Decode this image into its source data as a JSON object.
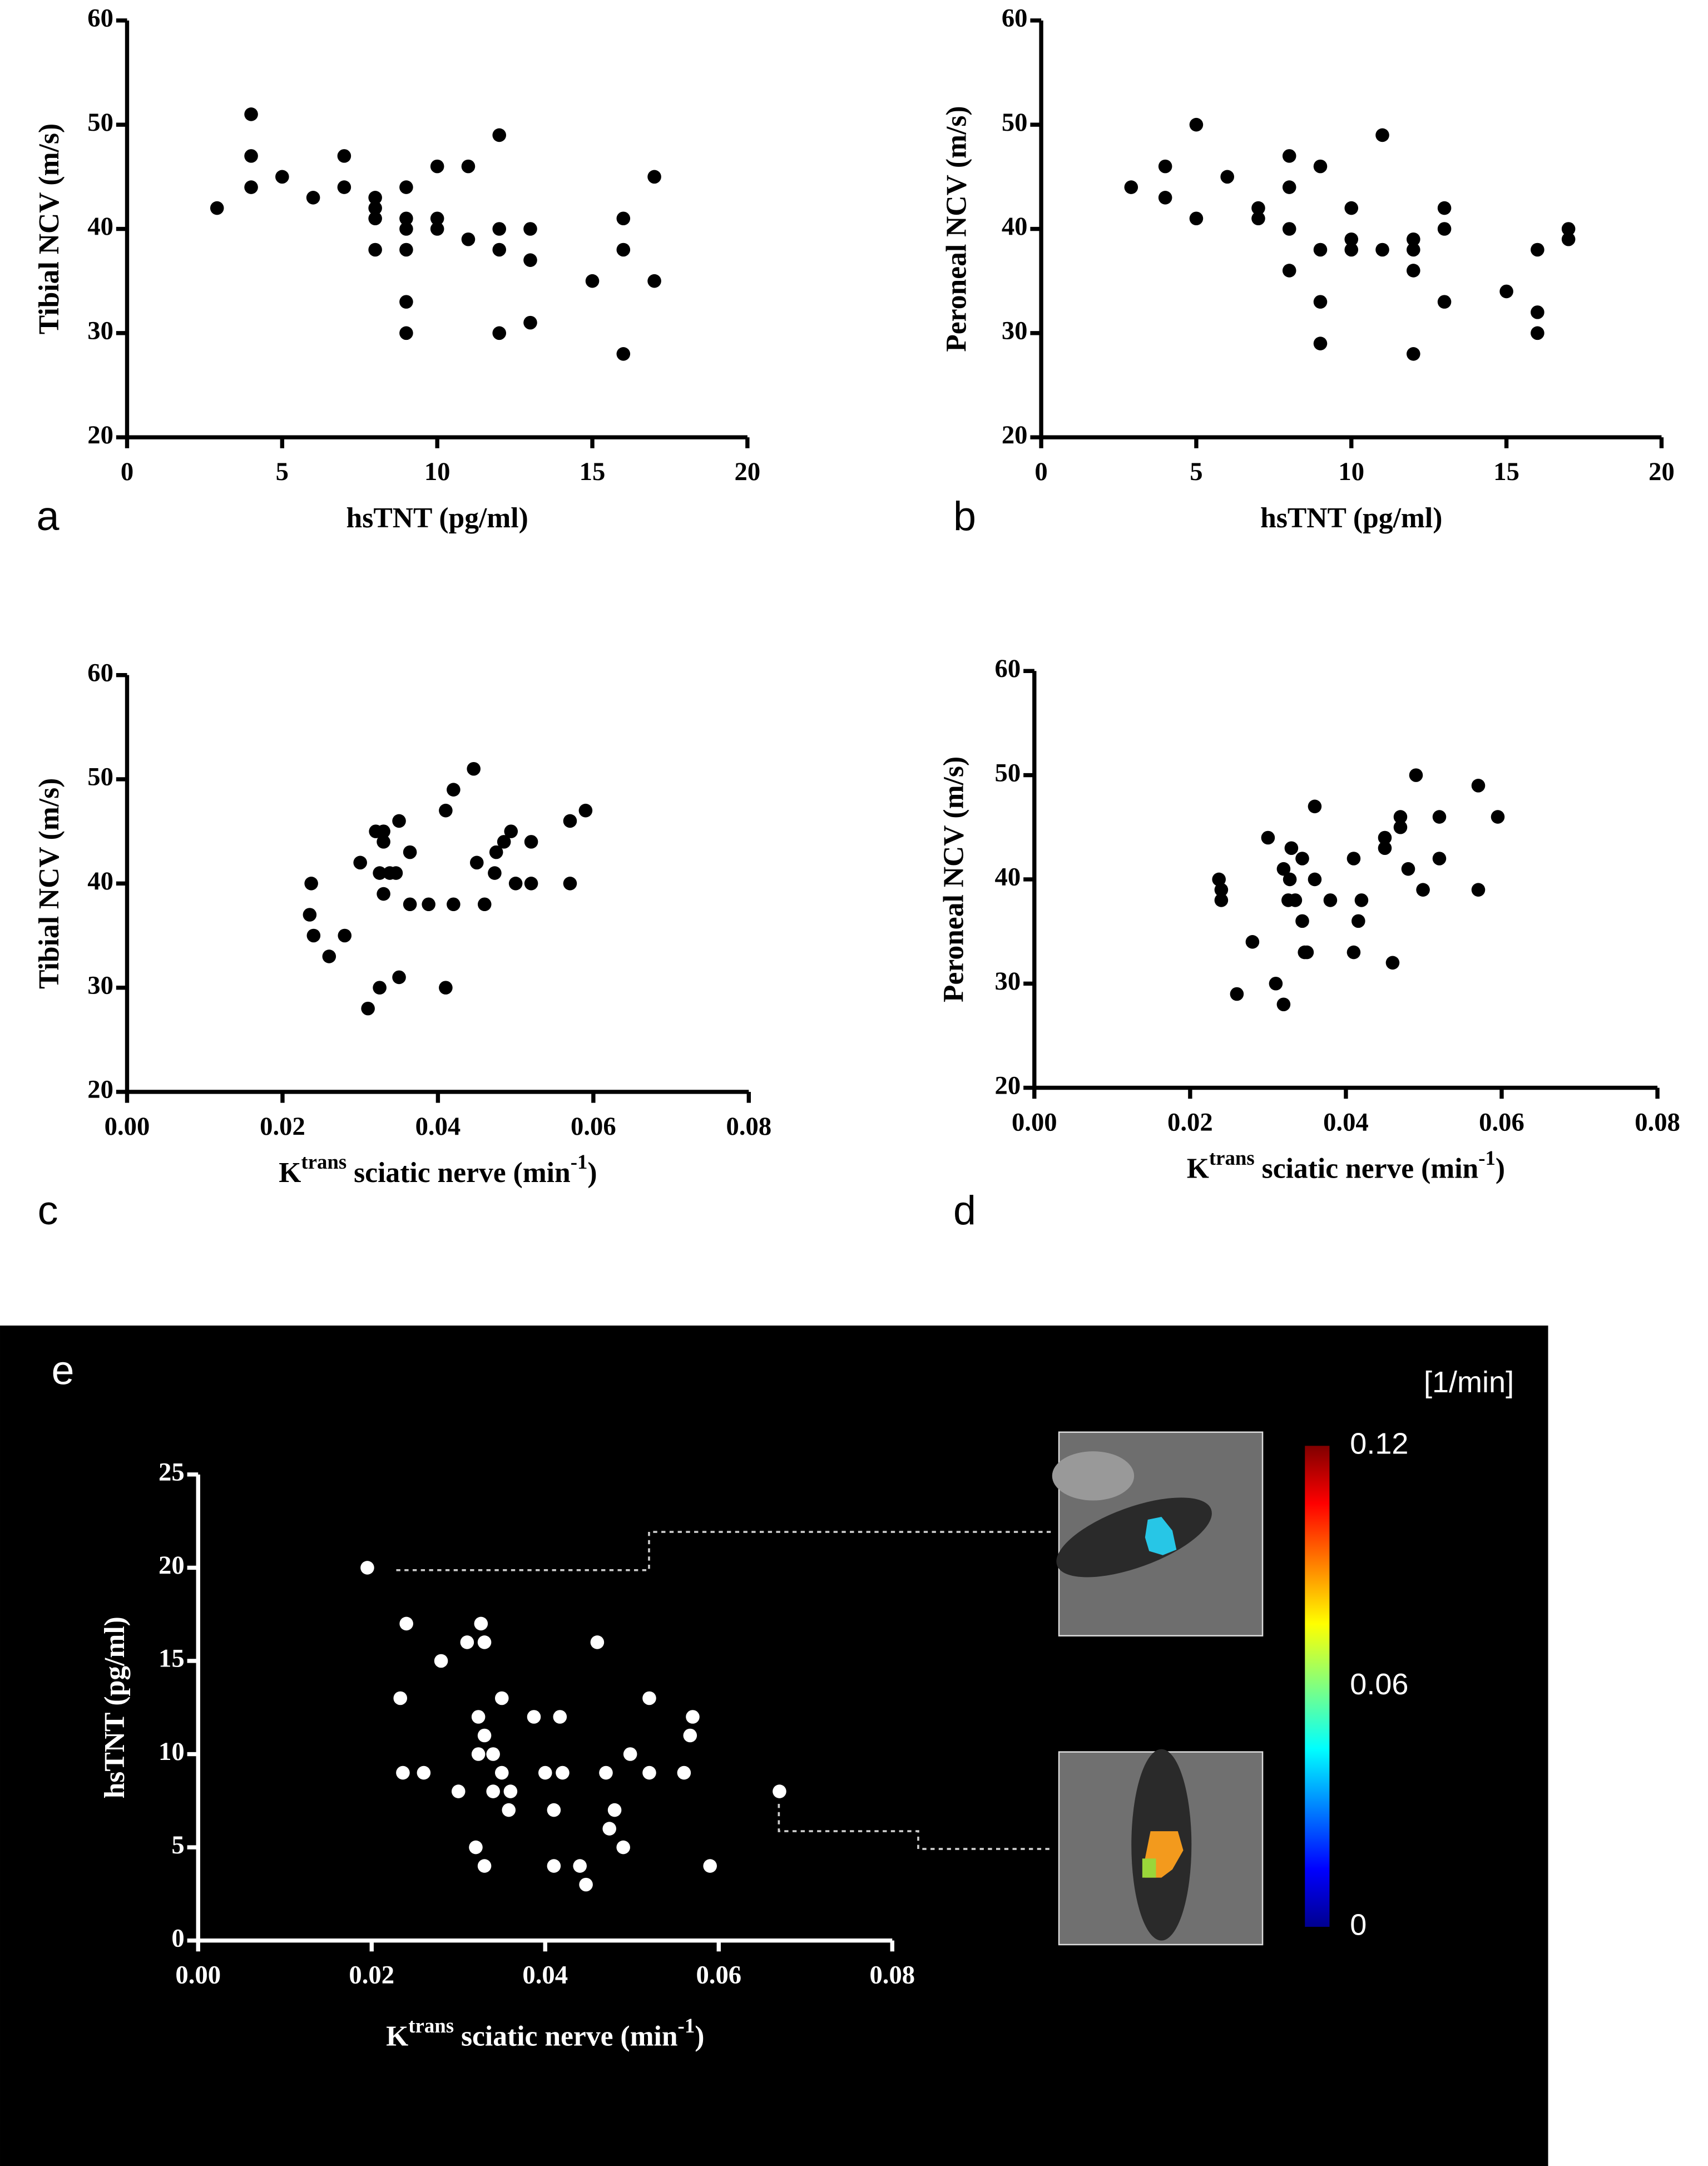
{
  "chart_data": [
    {
      "type": "scatter",
      "panel": "a",
      "x_label": "hsTNT (pg/ml)",
      "y_label": "Tibial NCV (m/s)",
      "color": "#000000",
      "axis_color": "#000000",
      "background": "#ffffff",
      "xlim": [
        0,
        20
      ],
      "xticks": [
        0,
        5,
        10,
        15,
        20
      ],
      "ylim": [
        20,
        60
      ],
      "yticks": [
        20,
        30,
        40,
        50,
        60
      ],
      "x": [
        2.9,
        4,
        4,
        4,
        5,
        6,
        7,
        7,
        8,
        8,
        8,
        8,
        9,
        9,
        9,
        9,
        9,
        9,
        10,
        10,
        10,
        11,
        11,
        12,
        12,
        12,
        12,
        13,
        13,
        13,
        15,
        16,
        16,
        16,
        17,
        17
      ],
      "values": [
        42,
        51,
        47,
        44,
        45,
        43,
        47,
        44,
        43,
        42,
        41,
        38,
        44,
        41,
        40,
        38,
        33,
        30,
        46,
        41,
        40,
        46,
        39,
        49,
        40,
        38,
        30,
        40,
        37,
        31,
        35,
        41,
        38,
        28,
        45,
        35
      ]
    },
    {
      "type": "scatter",
      "panel": "b",
      "x_label": "hsTNT (pg/ml)",
      "y_label": "Peroneal NCV (m/s)",
      "color": "#000000",
      "axis_color": "#000000",
      "background": "#ffffff",
      "xlim": [
        0,
        20
      ],
      "xticks": [
        0,
        5,
        10,
        15,
        20
      ],
      "ylim": [
        20,
        60
      ],
      "yticks": [
        20,
        30,
        40,
        50,
        60
      ],
      "x": [
        2.9,
        4,
        4,
        5,
        5,
        6,
        7,
        7,
        8,
        8,
        8,
        8,
        9,
        9,
        9,
        9,
        10,
        10,
        10,
        11,
        11,
        12,
        12,
        12,
        12,
        13,
        13,
        13,
        15,
        16,
        16,
        16,
        17,
        17
      ],
      "values": [
        44,
        46,
        43,
        50,
        41,
        45,
        42,
        41,
        47,
        44,
        40,
        36,
        46,
        38,
        33,
        29,
        42,
        39,
        38,
        49,
        38,
        39,
        38,
        36,
        28,
        42,
        40,
        33,
        34,
        38,
        32,
        30,
        40,
        39
      ]
    },
    {
      "type": "scatter",
      "panel": "c",
      "x_label": [
        "K",
        "trans",
        " sciatic nerve (min",
        "-1",
        ")"
      ],
      "y_label": "Tibial NCV (m/s)",
      "color": "#000000",
      "axis_color": "#000000",
      "background": "#ffffff",
      "xlim": [
        0,
        0.08
      ],
      "xticks": [
        {
          "value": 0,
          "label": "0.00"
        },
        0.02,
        0.04,
        0.06,
        0.08
      ],
      "ylim": [
        20,
        60
      ],
      "yticks": [
        20,
        30,
        40,
        50,
        60
      ],
      "x": [
        0.0237,
        0.0235,
        0.024,
        0.026,
        0.028,
        0.03,
        0.032,
        0.033,
        0.033,
        0.0325,
        0.0338,
        0.0346,
        0.033,
        0.035,
        0.0364,
        0.0364,
        0.0388,
        0.0325,
        0.035,
        0.031,
        0.041,
        0.042,
        0.042,
        0.0446,
        0.045,
        0.046,
        0.0473,
        0.0475,
        0.0485,
        0.0494,
        0.05,
        0.052,
        0.052,
        0.041,
        0.057,
        0.057,
        0.059
      ],
      "values": [
        40,
        37,
        35,
        33,
        35,
        42,
        45,
        45,
        44,
        41,
        41,
        41,
        39,
        46,
        43,
        38,
        38,
        30,
        31,
        28,
        47,
        49,
        38,
        51,
        42,
        38,
        41,
        43,
        44,
        45,
        40,
        40,
        44,
        30,
        46,
        40,
        47
      ]
    },
    {
      "type": "scatter",
      "panel": "d",
      "x_label": [
        "K",
        "trans",
        " sciatic nerve (min",
        "-1",
        ")"
      ],
      "y_label": "Peroneal NCV (m/s)",
      "color": "#000000",
      "axis_color": "#000000",
      "background": "#ffffff",
      "xlim": [
        0,
        0.08
      ],
      "xticks": [
        {
          "value": 0,
          "label": "0.00"
        },
        0.02,
        0.04,
        0.06,
        0.08
      ],
      "ylim": [
        20,
        60
      ],
      "yticks": [
        20,
        30,
        40,
        50,
        60
      ],
      "x": [
        0.0237,
        0.024,
        0.024,
        0.026,
        0.028,
        0.03,
        0.031,
        0.032,
        0.0328,
        0.0326,
        0.0335,
        0.032,
        0.033,
        0.0344,
        0.0344,
        0.0347,
        0.035,
        0.036,
        0.036,
        0.038,
        0.041,
        0.041,
        0.0416,
        0.042,
        0.045,
        0.045,
        0.046,
        0.047,
        0.047,
        0.048,
        0.049,
        0.0499,
        0.052,
        0.052,
        0.057,
        0.057,
        0.0595
      ],
      "values": [
        40,
        39,
        38,
        29,
        34,
        44,
        30,
        41,
        40,
        38,
        38,
        28,
        43,
        42,
        36,
        33,
        33,
        47,
        40,
        38,
        33,
        42,
        36,
        38,
        43,
        44,
        32,
        46,
        45,
        41,
        50,
        39,
        46,
        42,
        49,
        39,
        46
      ]
    },
    {
      "type": "scatter",
      "panel": "e",
      "x_label": [
        "K",
        "trans",
        " sciatic nerve (min",
        "-1",
        ")"
      ],
      "y_label": "hsTNT (pg/ml)",
      "color": "#ffffff",
      "axis_color": "#ffffff",
      "background": "#000000",
      "xlim": [
        0,
        0.08
      ],
      "xticks": [
        {
          "value": 0,
          "label": "0.00"
        },
        0.02,
        0.04,
        0.06,
        0.08
      ],
      "ylim": [
        0,
        25
      ],
      "yticks": [
        0,
        5,
        10,
        15,
        20,
        25
      ],
      "x": [
        0.0195,
        0.024,
        0.0233,
        0.0236,
        0.026,
        0.028,
        0.031,
        0.0326,
        0.033,
        0.0323,
        0.033,
        0.0323,
        0.034,
        0.035,
        0.03,
        0.034,
        0.035,
        0.036,
        0.0358,
        0.032,
        0.033,
        0.0387,
        0.04,
        0.0417,
        0.042,
        0.041,
        0.041,
        0.044,
        0.0447,
        0.046,
        0.047,
        0.048,
        0.0474,
        0.049,
        0.0498,
        0.052,
        0.052,
        0.056,
        0.0567,
        0.057,
        0.059,
        0.067
      ],
      "values": [
        20,
        17,
        13,
        9,
        9,
        15,
        16,
        17,
        16,
        12,
        11,
        10,
        10,
        13,
        8,
        8,
        9,
        8,
        7,
        5,
        4,
        12,
        9,
        12,
        9,
        7,
        4,
        4,
        3,
        16,
        9,
        7,
        6,
        5,
        10,
        13,
        9,
        9,
        11,
        12,
        4,
        8
      ],
      "colorbar": {
        "label": "[1/min]",
        "lim": [
          0,
          0.12
        ],
        "ticks": [
          0,
          0.06,
          0.12
        ]
      }
    }
  ]
}
